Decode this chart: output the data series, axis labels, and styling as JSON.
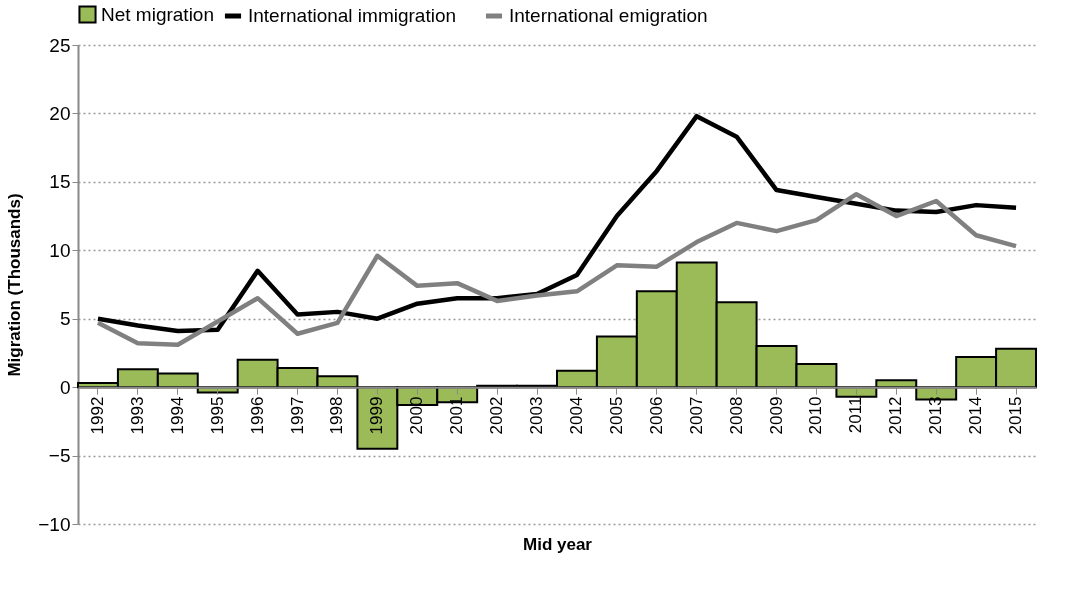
{
  "chart_data": {
    "type": "bar",
    "xlabel": "Mid year",
    "ylabel": "Migration (Thousands)",
    "categories": [
      "1992",
      "1993",
      "1994",
      "1995",
      "1996",
      "1997",
      "1998",
      "1999",
      "2000",
      "2001",
      "2002",
      "2003",
      "2004",
      "2005",
      "2006",
      "2007",
      "2008",
      "2009",
      "2010",
      "2011",
      "2012",
      "2013",
      "2014",
      "2015"
    ],
    "series": [
      {
        "name": "Net migration",
        "type": "bar",
        "color": "#9bbb59",
        "values": [
          0.3,
          1.3,
          1.0,
          -0.4,
          2.0,
          1.4,
          0.8,
          -4.5,
          -1.3,
          -1.1,
          0.1,
          0.1,
          1.2,
          3.7,
          7.0,
          9.1,
          6.2,
          3.0,
          1.7,
          -0.7,
          0.5,
          -0.9,
          2.2,
          2.8
        ]
      },
      {
        "name": "International immigration",
        "type": "line",
        "color": "#000000",
        "values": [
          5.0,
          4.5,
          4.1,
          4.2,
          8.5,
          5.3,
          5.5,
          5.0,
          6.1,
          6.5,
          6.5,
          6.8,
          8.2,
          12.5,
          15.8,
          19.8,
          18.3,
          14.4,
          13.9,
          13.4,
          12.9,
          12.8,
          13.3,
          13.1
        ]
      },
      {
        "name": "International emigration",
        "type": "line",
        "color": "#808080",
        "values": [
          4.7,
          3.2,
          3.1,
          4.8,
          6.5,
          3.9,
          4.7,
          9.6,
          7.4,
          7.6,
          6.3,
          6.7,
          7.0,
          8.9,
          8.8,
          10.6,
          12.0,
          11.4,
          12.2,
          14.1,
          12.5,
          13.6,
          11.1,
          10.3
        ]
      }
    ],
    "ylim": [
      -10,
      25
    ],
    "yticks": [
      -10,
      -5,
      0,
      5,
      10,
      15,
      20,
      25
    ],
    "grid": "y",
    "legend": "top"
  }
}
